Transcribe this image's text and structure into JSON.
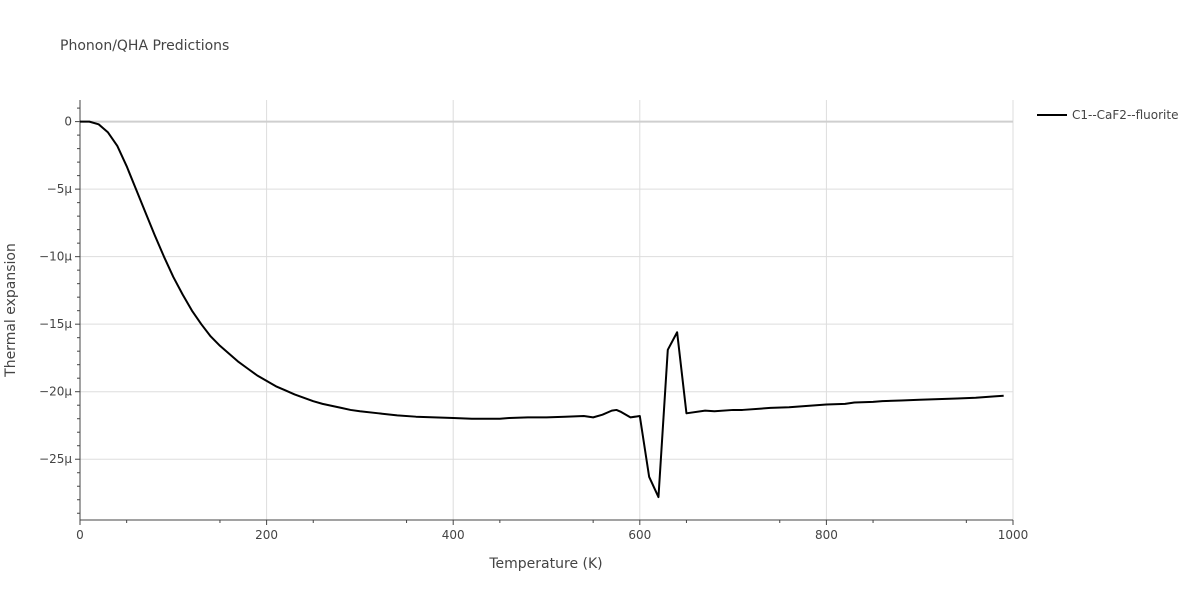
{
  "chart_data": {
    "type": "line",
    "title": "Phonon/QHA Predictions",
    "xlabel": "Temperature (K)",
    "ylabel": "Thermal expansion",
    "xlim": [
      0,
      1000
    ],
    "ylim": [
      -2.95e-05,
      1.6e-06
    ],
    "x_ticks": [
      {
        "value": 0,
        "label": "0"
      },
      {
        "value": 200,
        "label": "200"
      },
      {
        "value": 400,
        "label": "400"
      },
      {
        "value": 600,
        "label": "600"
      },
      {
        "value": 800,
        "label": "800"
      },
      {
        "value": 1000,
        "label": "1000"
      }
    ],
    "y_ticks": [
      {
        "value": 0,
        "label": "0"
      },
      {
        "value": -5e-06,
        "label": "−5μ"
      },
      {
        "value": -1e-05,
        "label": "−10μ"
      },
      {
        "value": -1.5e-05,
        "label": "−15μ"
      },
      {
        "value": -2e-05,
        "label": "−20μ"
      },
      {
        "value": -2.5e-05,
        "label": "−25μ"
      }
    ],
    "grid": true,
    "legend_position": "top-right",
    "series": [
      {
        "name": "C1--CaF2--fluorite",
        "color": "#000000",
        "x": [
          0,
          10,
          20,
          30,
          40,
          50,
          60,
          70,
          80,
          90,
          100,
          110,
          120,
          130,
          140,
          150,
          160,
          170,
          180,
          190,
          200,
          210,
          220,
          230,
          240,
          250,
          260,
          270,
          280,
          290,
          300,
          320,
          340,
          360,
          380,
          400,
          420,
          440,
          450,
          460,
          480,
          500,
          520,
          540,
          550,
          560,
          570,
          575,
          580,
          590,
          600,
          610,
          620,
          630,
          640,
          650,
          670,
          680,
          700,
          710,
          730,
          740,
          760,
          780,
          800,
          820,
          830,
          850,
          860,
          880,
          900,
          920,
          940,
          960,
          980,
          990
        ],
        "y": [
          0,
          0,
          -2e-07,
          -8e-07,
          -1.8e-06,
          -3.3e-06,
          -5e-06,
          -6.7e-06,
          -8.4e-06,
          -1e-05,
          -1.15e-05,
          -1.28e-05,
          -1.4e-05,
          -1.5e-05,
          -1.59e-05,
          -1.66e-05,
          -1.72e-05,
          -1.78e-05,
          -1.83e-05,
          -1.88e-05,
          -1.92e-05,
          -1.96e-05,
          -1.99e-05,
          -2.02e-05,
          -2.045e-05,
          -2.07e-05,
          -2.09e-05,
          -2.105e-05,
          -2.12e-05,
          -2.135e-05,
          -2.145e-05,
          -2.16e-05,
          -2.175e-05,
          -2.185e-05,
          -2.19e-05,
          -2.195e-05,
          -2.2e-05,
          -2.2e-05,
          -2.2e-05,
          -2.195e-05,
          -2.19e-05,
          -2.19e-05,
          -2.185e-05,
          -2.18e-05,
          -2.19e-05,
          -2.17e-05,
          -2.14e-05,
          -2.135e-05,
          -2.15e-05,
          -2.19e-05,
          -2.18e-05,
          -2.63e-05,
          -2.78e-05,
          -1.69e-05,
          -1.56e-05,
          -2.16e-05,
          -2.14e-05,
          -2.145e-05,
          -2.135e-05,
          -2.135e-05,
          -2.125e-05,
          -2.12e-05,
          -2.115e-05,
          -2.105e-05,
          -2.095e-05,
          -2.09e-05,
          -2.08e-05,
          -2.075e-05,
          -2.07e-05,
          -2.065e-05,
          -2.06e-05,
          -2.055e-05,
          -2.05e-05,
          -2.045e-05,
          -2.035e-05,
          -2.03e-05
        ]
      }
    ]
  }
}
